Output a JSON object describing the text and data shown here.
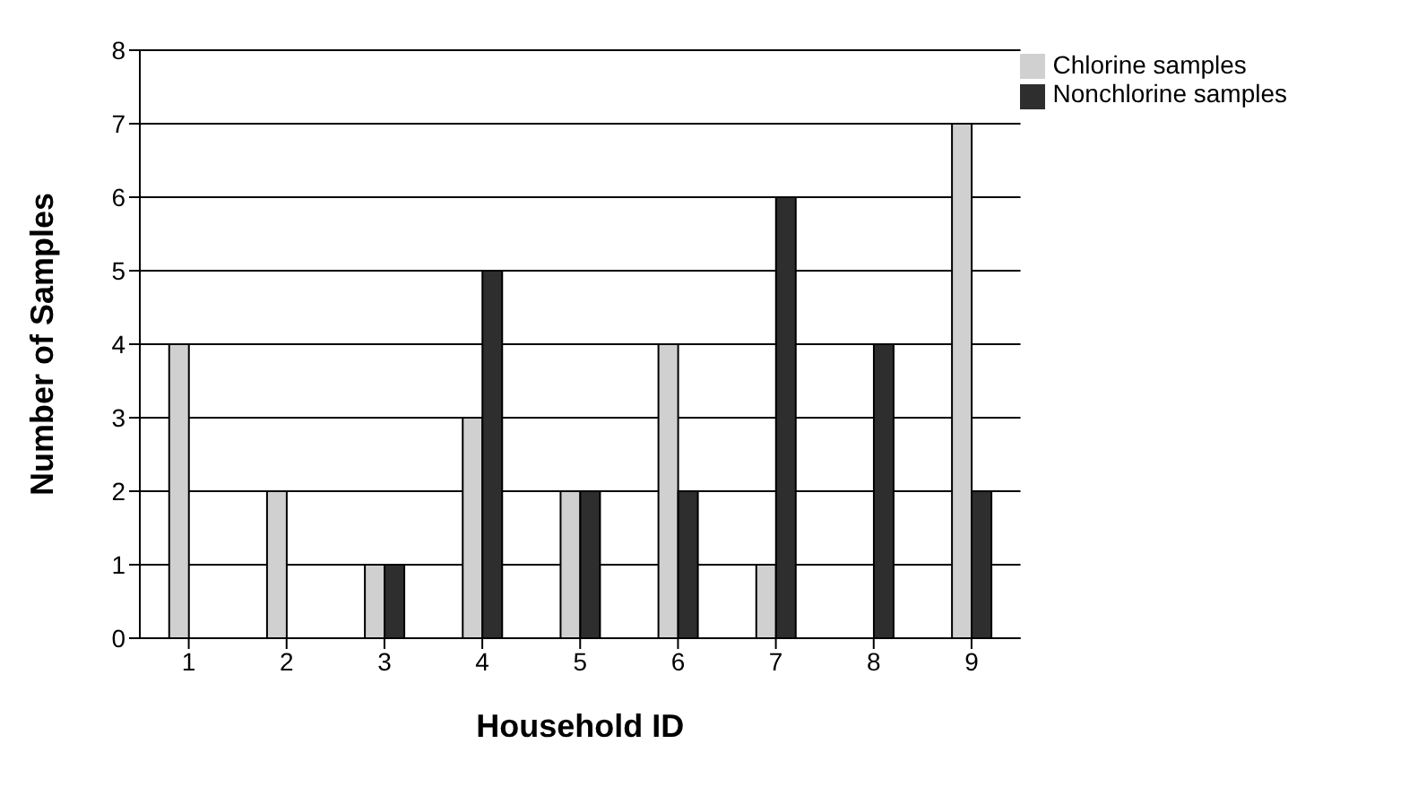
{
  "chart_data": {
    "type": "bar",
    "xlabel": "Household ID",
    "ylabel": "Number of Samples",
    "categories": [
      "1",
      "2",
      "3",
      "4",
      "5",
      "6",
      "7",
      "8",
      "9"
    ],
    "series": [
      {
        "name": "Chlorine samples",
        "color": "#d0d0d0",
        "values": [
          4,
          2,
          1,
          3,
          2,
          4,
          1,
          0,
          7
        ]
      },
      {
        "name": "Nonchlorine samples",
        "color": "#2e2e2e",
        "values": [
          0,
          0,
          1,
          5,
          2,
          2,
          6,
          4,
          2
        ]
      }
    ],
    "ylim": [
      0,
      8
    ],
    "yticks": [
      0,
      1,
      2,
      3,
      4,
      5,
      6,
      7,
      8
    ],
    "grid": "y",
    "legend": "top right"
  }
}
